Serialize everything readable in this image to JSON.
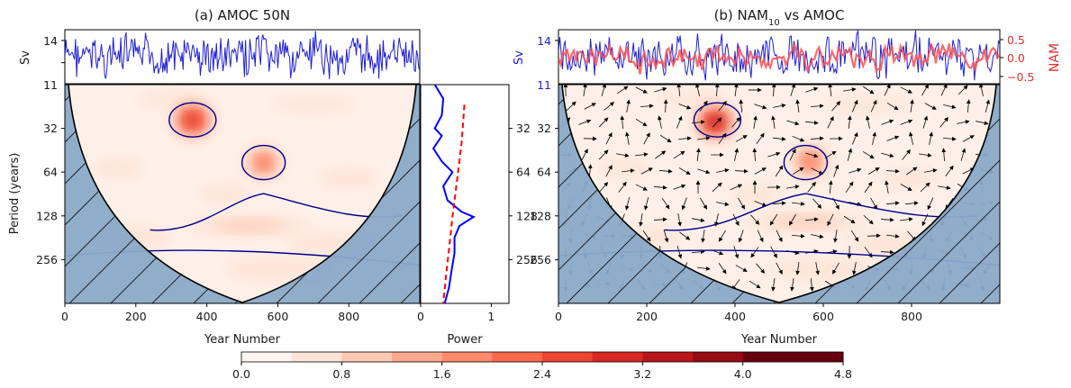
{
  "chart_data": [
    {
      "type": "heatmap",
      "title": "(a) AMOC 50N",
      "xlabel": "Year Number",
      "ylabel": "Period (years)",
      "x_ticks": [
        0,
        200,
        400,
        600,
        800
      ],
      "y_ticks": [
        32,
        64,
        128,
        256
      ],
      "xlim": [
        0,
        1000
      ],
      "ylim_period": [
        16,
        512
      ],
      "y_scale": "log2",
      "hotspots": [
        {
          "year": 360,
          "period": 28,
          "power": 3.0
        },
        {
          "year": 560,
          "period": 55,
          "power": 2.0
        },
        {
          "year": 520,
          "period": 150,
          "power": 1.4
        }
      ],
      "timeseries": {
        "ylabel": "Sv",
        "y_ticks": [
          11,
          14
        ],
        "color": "#1f1fd6"
      }
    },
    {
      "type": "line",
      "xlabel": "Power",
      "x_ticks": [
        0,
        1
      ],
      "xlim": [
        0,
        1.25
      ],
      "series": [
        {
          "values": [
            [
              0.2,
              16
            ],
            [
              0.32,
              20
            ],
            [
              0.3,
              26
            ],
            [
              0.2,
              32
            ],
            [
              0.3,
              36
            ],
            [
              0.18,
              44
            ],
            [
              0.3,
              54
            ],
            [
              0.45,
              64
            ],
            [
              0.32,
              80
            ],
            [
              0.38,
              100
            ],
            [
              0.58,
              120
            ],
            [
              0.75,
              130
            ],
            [
              0.55,
              150
            ],
            [
              0.48,
              180
            ],
            [
              0.48,
              230
            ],
            [
              0.44,
              300
            ],
            [
              0.4,
              400
            ],
            [
              0.34,
              512
            ]
          ],
          "color": "#0000ff",
          "style": "solid"
        },
        {
          "values": [
            [
              0.62,
              22
            ],
            [
              0.58,
              40
            ],
            [
              0.52,
              70
            ],
            [
              0.45,
              130
            ],
            [
              0.4,
              220
            ],
            [
              0.36,
              330
            ],
            [
              0.32,
              512
            ]
          ],
          "color": "#ff0000",
          "style": "dashed"
        }
      ]
    },
    {
      "type": "heatmap",
      "title_main": "(b) NAM",
      "title_sub": "10",
      "title_tail": " vs AMOC",
      "xlabel": "Year Number",
      "x_ticks": [
        0,
        200,
        400,
        600,
        800
      ],
      "y_ticks": [
        32,
        64,
        128,
        256
      ],
      "xlim": [
        0,
        1000
      ],
      "ylim_period": [
        16,
        512
      ],
      "hotspots": [
        {
          "year": 355,
          "period": 29,
          "power": 3.3
        },
        {
          "year": 570,
          "period": 54,
          "power": 2.1
        },
        {
          "year": 560,
          "period": 140,
          "power": 1.2
        }
      ],
      "timeseries": {
        "ylabel_left": "Sv",
        "left_ticks": [
          11,
          14
        ],
        "ylabel_right": "NAM",
        "right_ticks": [
          "−0.5",
          "0.0",
          "0.5"
        ],
        "left_color": "#1f1fd6",
        "right_color": "#ff5050"
      }
    }
  ],
  "colorbar": {
    "ticks": [
      "0.0",
      "0.8",
      "1.6",
      "2.4",
      "3.2",
      "4.0",
      "4.8"
    ],
    "levels": [
      0,
      0.4,
      0.8,
      1.2,
      1.6,
      2.0,
      2.4,
      2.8,
      3.2,
      3.6,
      4.0,
      4.4,
      4.8
    ],
    "colors": [
      "#fff5f0",
      "#fee3d6",
      "#fdc9b4",
      "#fcaa8e",
      "#fc8a6b",
      "#f9694c",
      "#ef4533",
      "#d92723",
      "#bb151a",
      "#970b13",
      "#67000d",
      "#67000d"
    ]
  },
  "colors": {
    "coi": "#8aa9c8",
    "contour": "#00008b",
    "amoc": "#1f1fd6",
    "nam": "#ff5050"
  }
}
